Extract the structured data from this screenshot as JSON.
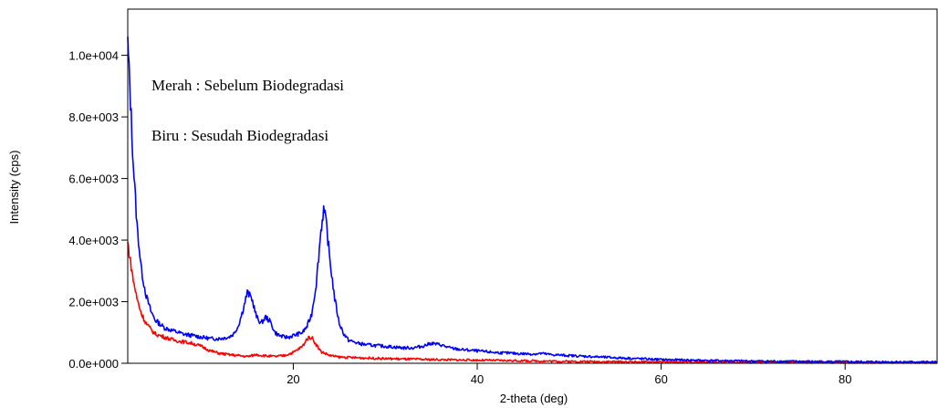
{
  "chart_data": {
    "type": "line",
    "title": "",
    "xlabel": "2-theta (deg)",
    "ylabel": "Intensity (cps)",
    "xlim": [
      2,
      90
    ],
    "ylim": [
      0,
      11500
    ],
    "x_ticks": [
      20,
      40,
      60,
      80
    ],
    "x_tick_labels": [
      "20",
      "40",
      "60",
      "80"
    ],
    "y_ticks": [
      0,
      2000,
      4000,
      6000,
      8000,
      10000
    ],
    "y_tick_labels": [
      "0.0e+000",
      "2.0e+003",
      "4.0e+003",
      "6.0e+003",
      "8.0e+003",
      "1.0e+004"
    ],
    "grid": false,
    "annotations": [
      "Merah : Sebelum Biodegradasi",
      "Biru : Sesudah Biodegradasi"
    ],
    "series": [
      {
        "color": "#0000ff",
        "x": [
          2,
          2.3,
          2.6,
          3,
          3.5,
          4,
          4.5,
          5,
          6,
          7,
          8,
          9,
          10,
          11,
          12,
          13,
          13.5,
          14,
          14.5,
          15,
          15.5,
          16,
          16.5,
          17,
          17.5,
          18,
          18.5,
          19,
          19.5,
          20,
          20.5,
          21,
          21.5,
          22,
          22.5,
          23,
          23.3,
          23.6,
          24,
          24.5,
          25,
          25.5,
          26,
          27,
          28,
          30,
          32,
          33,
          34,
          35,
          36,
          37,
          38,
          40,
          42,
          44,
          46,
          47,
          48,
          50,
          55,
          60,
          65,
          70,
          75,
          80,
          85,
          90
        ],
        "y": [
          10400,
          8500,
          6500,
          4500,
          3000,
          2200,
          1700,
          1400,
          1150,
          1050,
          950,
          900,
          850,
          800,
          800,
          850,
          950,
          1200,
          1700,
          2300,
          2100,
          1500,
          1300,
          1500,
          1350,
          1000,
          900,
          850,
          850,
          900,
          950,
          1000,
          1200,
          1600,
          2600,
          4300,
          5000,
          4500,
          3300,
          2100,
          1300,
          950,
          750,
          650,
          600,
          550,
          500,
          500,
          550,
          650,
          600,
          500,
          450,
          400,
          350,
          320,
          300,
          320,
          280,
          250,
          180,
          120,
          90,
          70,
          60,
          50,
          45,
          40
        ]
      },
      {
        "color": "#ff0000",
        "x": [
          2,
          2.3,
          2.6,
          3,
          3.5,
          4,
          4.5,
          5,
          6,
          7,
          8,
          9,
          10,
          11,
          12,
          13,
          14,
          15,
          16,
          17,
          18,
          19,
          20,
          21,
          21.5,
          22,
          22.5,
          23,
          24,
          25,
          30,
          35,
          40,
          45,
          50,
          60,
          70,
          80,
          90
        ],
        "y": [
          3900,
          3300,
          2700,
          2100,
          1600,
          1300,
          1100,
          950,
          850,
          750,
          700,
          650,
          550,
          400,
          320,
          280,
          250,
          220,
          280,
          240,
          220,
          250,
          350,
          550,
          800,
          850,
          600,
          380,
          250,
          200,
          150,
          120,
          100,
          80,
          60,
          40,
          30,
          25,
          20
        ]
      }
    ]
  }
}
